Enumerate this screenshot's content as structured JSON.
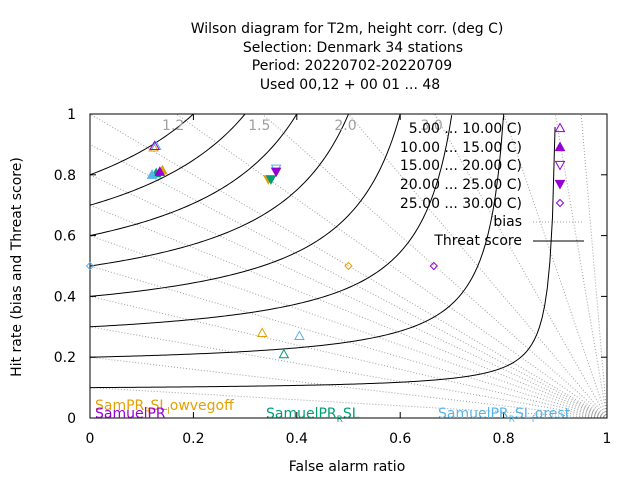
{
  "chart_data": {
    "type": "scatter",
    "title_lines": [
      "Wilson diagram  for T2m, height corr. (deg C)",
      "Selection: Denmark      34 stations",
      "Period: 20220702-20220709",
      "Used  00,12  + 00 01 ... 48"
    ],
    "xlabel": "False alarm ratio",
    "ylabel": "Hit rate (bias and Threat score)",
    "xlim": [
      0,
      1
    ],
    "ylim": [
      0,
      1
    ],
    "x_ticks": [
      "0",
      "0.2",
      "0.4",
      "0.6",
      "0.8",
      "1"
    ],
    "y_ticks": [
      "0",
      "0.2",
      "0.4",
      "0.6",
      "0.8",
      "1"
    ],
    "bias_labels": [
      {
        "text": "1.2",
        "bias": 1.2
      },
      {
        "text": "1.5",
        "bias": 1.5
      },
      {
        "text": "2.0",
        "bias": 2.0
      },
      {
        "text": "3.0",
        "bias": 3.0
      }
    ],
    "bias_values": [
      0.1,
      0.2,
      0.3,
      0.4,
      0.5,
      0.6,
      0.7,
      0.8,
      0.9,
      1.0,
      1.2,
      1.5,
      2.0,
      3.0,
      5.0,
      10.0,
      20.0
    ],
    "threat_values": [
      0.1,
      0.2,
      0.3,
      0.4,
      0.5,
      0.6,
      0.7,
      0.8
    ],
    "legend": {
      "series_labels": [
        "5.00 ... 10.00 C)",
        "10.00 ... 15.00 C)",
        "15.00 ... 20.00 C)",
        "20.00 ... 25.00 C)",
        "25.00 ... 30.00 C)"
      ],
      "bias_label": "bias",
      "threat_label": "Threat score"
    },
    "series": [
      {
        "name": "5.00 ... 10.00 C)",
        "marker": "triangle-open",
        "color": "#9400d3",
        "points": [
          [
            0.125,
            0.895
          ]
        ]
      },
      {
        "name": "10.00 ... 15.00 C)",
        "marker": "triangle-filled",
        "color": "#9400d3",
        "points": [
          [
            0.135,
            0.81
          ]
        ]
      },
      {
        "name": "15.00 ... 20.00 C)",
        "marker": "triangle-down-open",
        "color": "#9400d3",
        "points": []
      },
      {
        "name": "20.00 ... 25.00 C)",
        "marker": "triangle-down-filled",
        "color": "#9400d3",
        "points": [
          [
            0.36,
            0.81
          ]
        ]
      },
      {
        "name": "25.00 ... 30.00 C)",
        "marker": "diamond-open",
        "color": "#9400d3",
        "points": [
          [
            0.665,
            0.5
          ]
        ]
      }
    ],
    "model_points": [
      {
        "model": "SamPR_SL_lowvegoff",
        "color": "#e69f00",
        "points": [
          {
            "marker": "triangle-open",
            "x": 0.123,
            "y": 0.89
          },
          {
            "marker": "triangle-filled",
            "x": 0.14,
            "y": 0.815
          },
          {
            "marker": "triangle-down-filled",
            "x": 0.345,
            "y": 0.785
          },
          {
            "marker": "diamond-open",
            "x": 0.5,
            "y": 0.5
          },
          {
            "marker": "triangle-open",
            "x": 0.333,
            "y": 0.28
          }
        ]
      },
      {
        "model": "SamuelPR",
        "color": "#9400d3",
        "points": []
      },
      {
        "model": "SamuelPR_SL",
        "color": "#009e73",
        "points": [
          {
            "marker": "triangle-filled",
            "x": 0.128,
            "y": 0.805
          },
          {
            "marker": "triangle-down-filled",
            "x": 0.35,
            "y": 0.785
          },
          {
            "marker": "triangle-open",
            "x": 0.375,
            "y": 0.21
          }
        ]
      },
      {
        "model": "SamuelPR_SLforest",
        "color": "#56b4e9",
        "points": [
          {
            "marker": "triangle-open",
            "x": 0.128,
            "y": 0.895
          },
          {
            "marker": "triangle-filled",
            "x": 0.12,
            "y": 0.8
          },
          {
            "marker": "triangle-down-open",
            "x": 0.36,
            "y": 0.82
          },
          {
            "marker": "triangle-open",
            "x": 0.405,
            "y": 0.27
          },
          {
            "marker": "diamond-open",
            "x": 0.0,
            "y": 0.5
          }
        ]
      }
    ],
    "annotations": [
      {
        "base": "SamPR",
        "sub": "R",
        "rest": "SL",
        "sub2": "l",
        "rest2": "owvegoff",
        "color": "#e69f00",
        "pos": "bottom-left-upper"
      },
      {
        "base": "SamuelPR",
        "sub": "",
        "rest": "",
        "sub2": "",
        "rest2": "",
        "color": "#9400d3",
        "pos": "bottom-left-lower"
      },
      {
        "base": "SamuelPR",
        "sub": "R",
        "rest": "SL",
        "sub2": "",
        "rest2": "",
        "color": "#009e73",
        "pos": "bottom-center"
      },
      {
        "base": "SamuelPR",
        "sub": "R",
        "rest": "SL",
        "sub2": "f",
        "rest2": "orest",
        "color": "#56b4e9",
        "pos": "bottom-right"
      }
    ],
    "grid": false
  }
}
